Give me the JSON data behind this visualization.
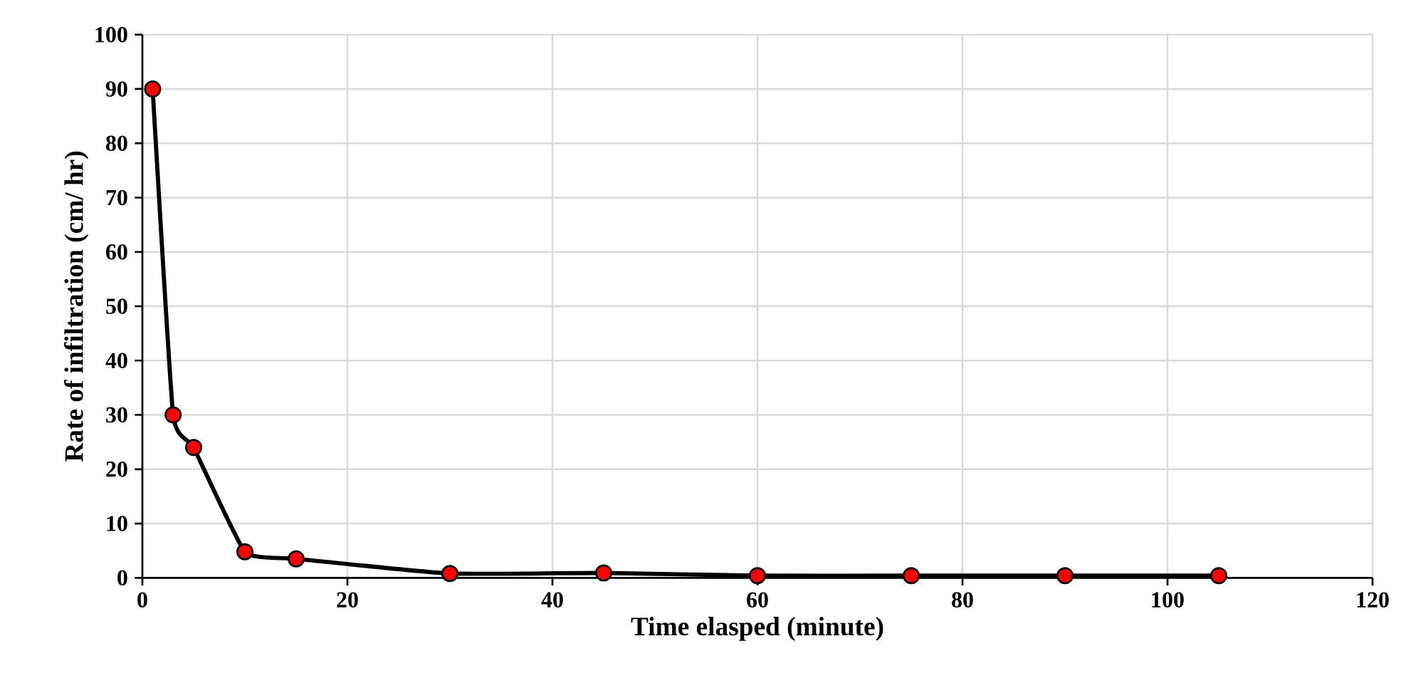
{
  "chart_data": {
    "type": "line",
    "xlabel": "Time elasped (minute)",
    "ylabel": "Rate of infiltration (cm/ hr)",
    "x": [
      1,
      3,
      5,
      10,
      15,
      30,
      45,
      60,
      75,
      90,
      105
    ],
    "series": [
      {
        "color": "#000000",
        "values": [
          90,
          30,
          24,
          4.8,
          3.5,
          0.8,
          0.9,
          0.4,
          0.4,
          0.4,
          0.4
        ]
      }
    ],
    "xlim": [
      0,
      120
    ],
    "xticks": [
      0,
      20,
      40,
      60,
      80,
      100,
      120
    ],
    "ylim": [
      0,
      100
    ],
    "yticks": [
      0,
      10,
      20,
      30,
      40,
      50,
      60,
      70,
      80,
      90,
      100
    ],
    "grid": true,
    "marker": "circle",
    "line_style": "solid"
  }
}
